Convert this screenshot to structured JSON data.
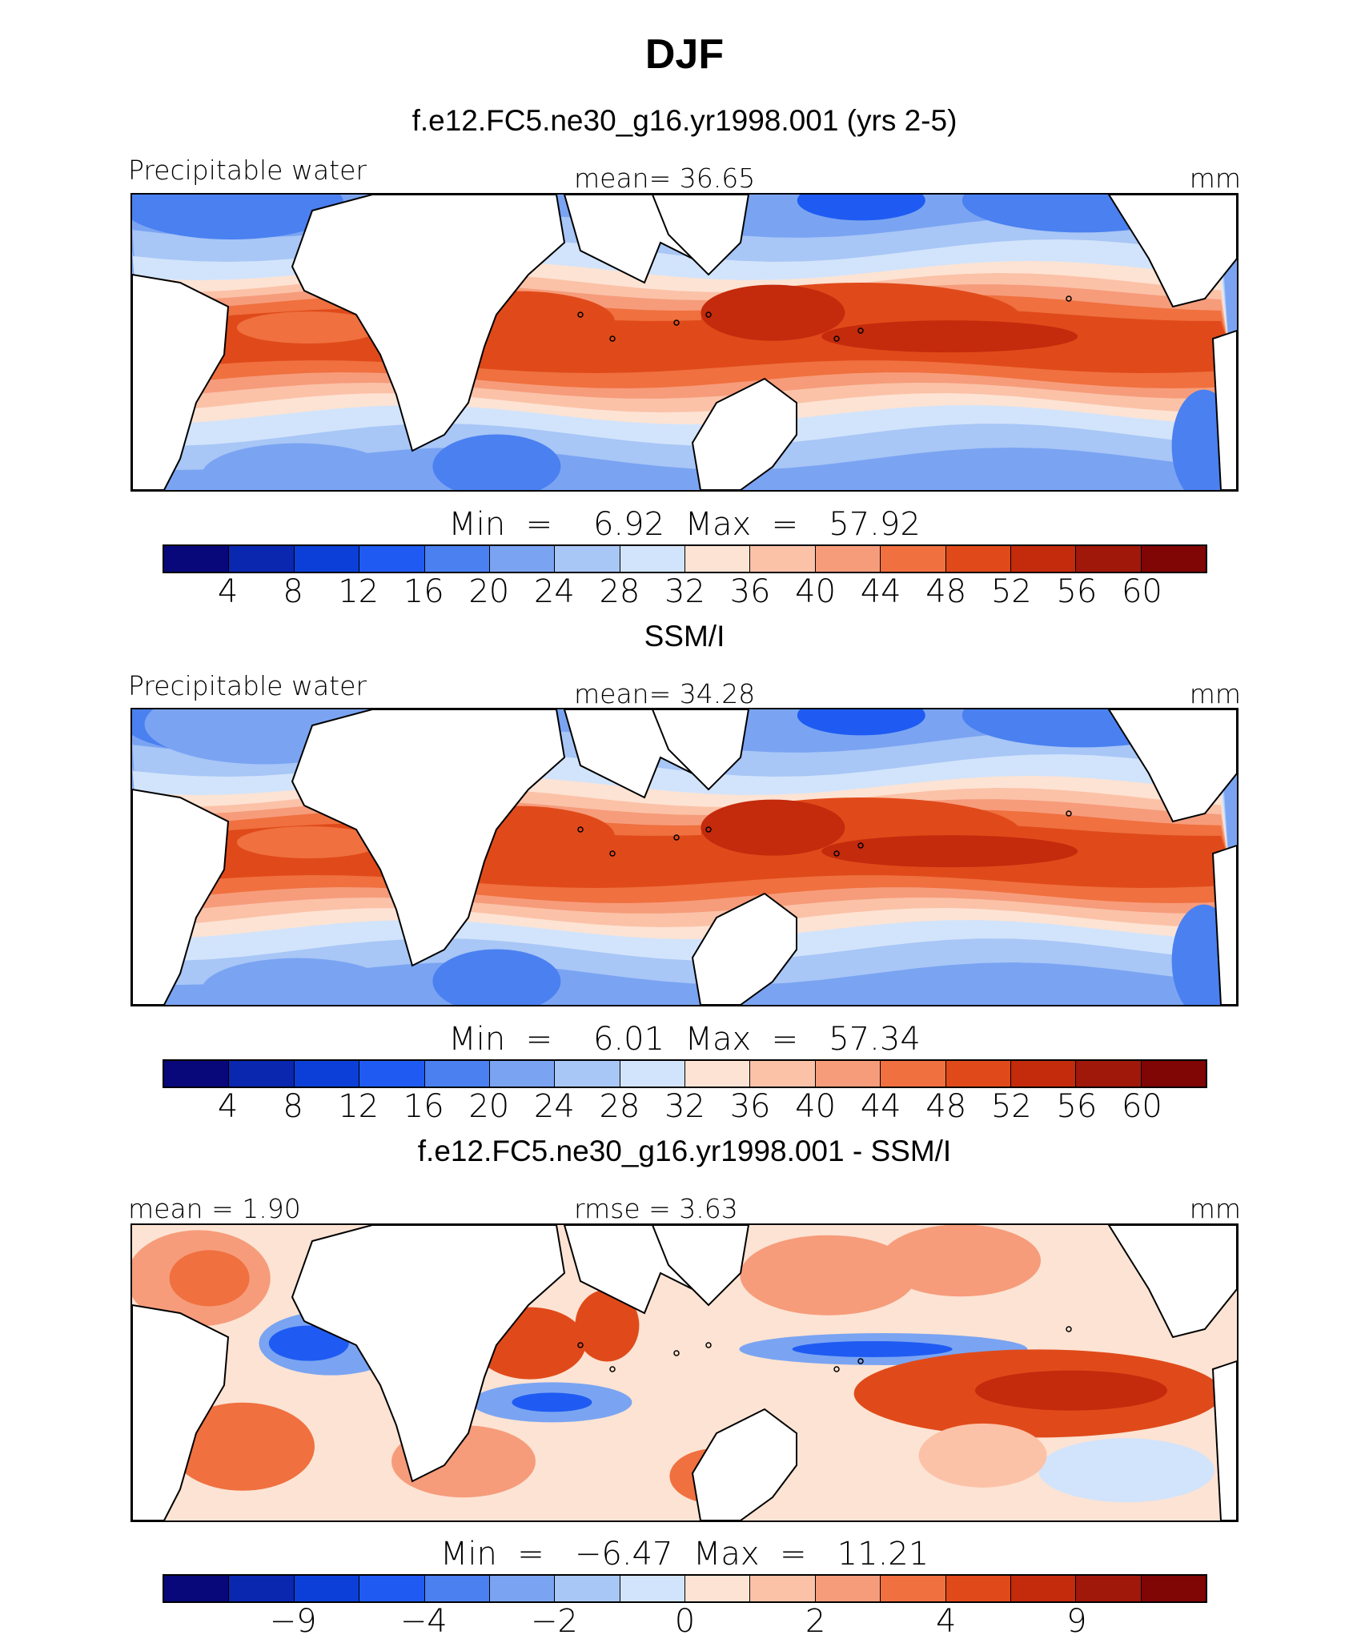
{
  "title": "DJF",
  "colors": [
    "#08087a",
    "#0a27b0",
    "#0b3fd8",
    "#1f5bf2",
    "#4a80f0",
    "#7aa4f2",
    "#a8c6f6",
    "#d2e4fb",
    "#fde3d3",
    "#fbc2a8",
    "#f69c7b",
    "#f0703f",
    "#e04a1a",
    "#c42a0c",
    "#a0180a",
    "#800505"
  ],
  "panels": [
    {
      "title": "f.e12.FC5.ne30_g16.yr1998.001 (yrs 2-5)",
      "left_label": "Precipitable water",
      "mid_label": "mean=   36.65",
      "units": "mm",
      "minmax": "Min  =    6.92  Max  =   57.92",
      "ticks": [
        "4",
        "8",
        "12",
        "16",
        "20",
        "24",
        "28",
        "32",
        "36",
        "40",
        "44",
        "48",
        "52",
        "56",
        "60"
      ]
    },
    {
      "title": "SSM/I",
      "left_label": "Precipitable water",
      "mid_label": "mean=   34.28",
      "units": "mm",
      "minmax": "Min  =    6.01  Max  =   57.34",
      "ticks": [
        "4",
        "8",
        "12",
        "16",
        "20",
        "24",
        "28",
        "32",
        "36",
        "40",
        "44",
        "48",
        "52",
        "56",
        "60"
      ]
    },
    {
      "title": "f.e12.FC5.ne30_g16.yr1998.001 - SSM/I",
      "left_label": "mean  =    1.90",
      "mid_label": "rmse  =    3.63",
      "units": "mm",
      "minmax": "Min  =   −6.47  Max  =   11.21",
      "ticks": [
        "−9",
        "−4",
        "−2",
        "0",
        "2",
        "4",
        "9"
      ]
    }
  ],
  "chart_data": [
    {
      "type": "heatmap",
      "title": "f.e12.FC5.ne30_g16.yr1998.001 (yrs 2-5)",
      "variable": "Precipitable water",
      "units": "mm",
      "mean": 36.65,
      "min": 6.92,
      "max": 57.92,
      "contour_levels": [
        4,
        8,
        12,
        16,
        20,
        24,
        28,
        32,
        36,
        40,
        44,
        48,
        52,
        56,
        60
      ]
    },
    {
      "type": "heatmap",
      "title": "SSM/I",
      "variable": "Precipitable water",
      "units": "mm",
      "mean": 34.28,
      "min": 6.01,
      "max": 57.34,
      "contour_levels": [
        4,
        8,
        12,
        16,
        20,
        24,
        28,
        32,
        36,
        40,
        44,
        48,
        52,
        56,
        60
      ]
    },
    {
      "type": "heatmap",
      "title": "f.e12.FC5.ne30_g16.yr1998.001 - SSM/I",
      "units": "mm",
      "mean": 1.9,
      "rmse": 3.63,
      "min": -6.47,
      "max": 11.21,
      "contour_levels": [
        -9,
        -4,
        -2,
        0,
        2,
        4,
        9
      ]
    }
  ]
}
